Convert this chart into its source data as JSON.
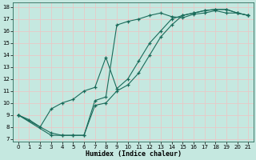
{
  "title": "",
  "xlabel": "Humidex (Indice chaleur)",
  "bg_color": "#c5e8e0",
  "grid_color": "#e8c8c8",
  "line_color": "#1a6b5a",
  "xlim": [
    -0.5,
    21.5
  ],
  "ylim": [
    6.8,
    18.4
  ],
  "xticks": [
    0,
    1,
    2,
    3,
    4,
    5,
    6,
    7,
    8,
    9,
    10,
    11,
    12,
    13,
    14,
    15,
    16,
    17,
    18,
    19,
    20,
    21
  ],
  "yticks": [
    7,
    8,
    9,
    10,
    11,
    12,
    13,
    14,
    15,
    16,
    17,
    18
  ],
  "line1_x": [
    0,
    1,
    2,
    3,
    4,
    5,
    6,
    7,
    8,
    9,
    10,
    11,
    12,
    13,
    14,
    15,
    16,
    17,
    18,
    19,
    20,
    21
  ],
  "line1_y": [
    9.0,
    8.6,
    8.0,
    7.5,
    7.3,
    7.3,
    7.3,
    10.2,
    10.5,
    16.5,
    16.8,
    17.0,
    17.3,
    17.5,
    17.2,
    17.1,
    17.4,
    17.5,
    17.7,
    17.5,
    17.5,
    17.3
  ],
  "line2_x": [
    0,
    2,
    3,
    4,
    5,
    6,
    7,
    8,
    9,
    10,
    11,
    12,
    13,
    14,
    15,
    16,
    17,
    18,
    19,
    20,
    21
  ],
  "line2_y": [
    9.0,
    8.0,
    9.5,
    10.0,
    10.3,
    11.0,
    11.3,
    13.8,
    11.2,
    12.0,
    13.5,
    15.0,
    16.0,
    17.0,
    17.3,
    17.5,
    17.7,
    17.8,
    17.8,
    17.5,
    17.3
  ],
  "line3_x": [
    0,
    3,
    4,
    5,
    6,
    7,
    8,
    9,
    10,
    11,
    12,
    13,
    14,
    15,
    16,
    17,
    18,
    19,
    20,
    21
  ],
  "line3_y": [
    9.0,
    7.3,
    7.3,
    7.3,
    7.3,
    9.8,
    10.0,
    11.0,
    11.5,
    12.5,
    14.0,
    15.5,
    16.5,
    17.3,
    17.5,
    17.7,
    17.8,
    17.8,
    17.5,
    17.3
  ]
}
